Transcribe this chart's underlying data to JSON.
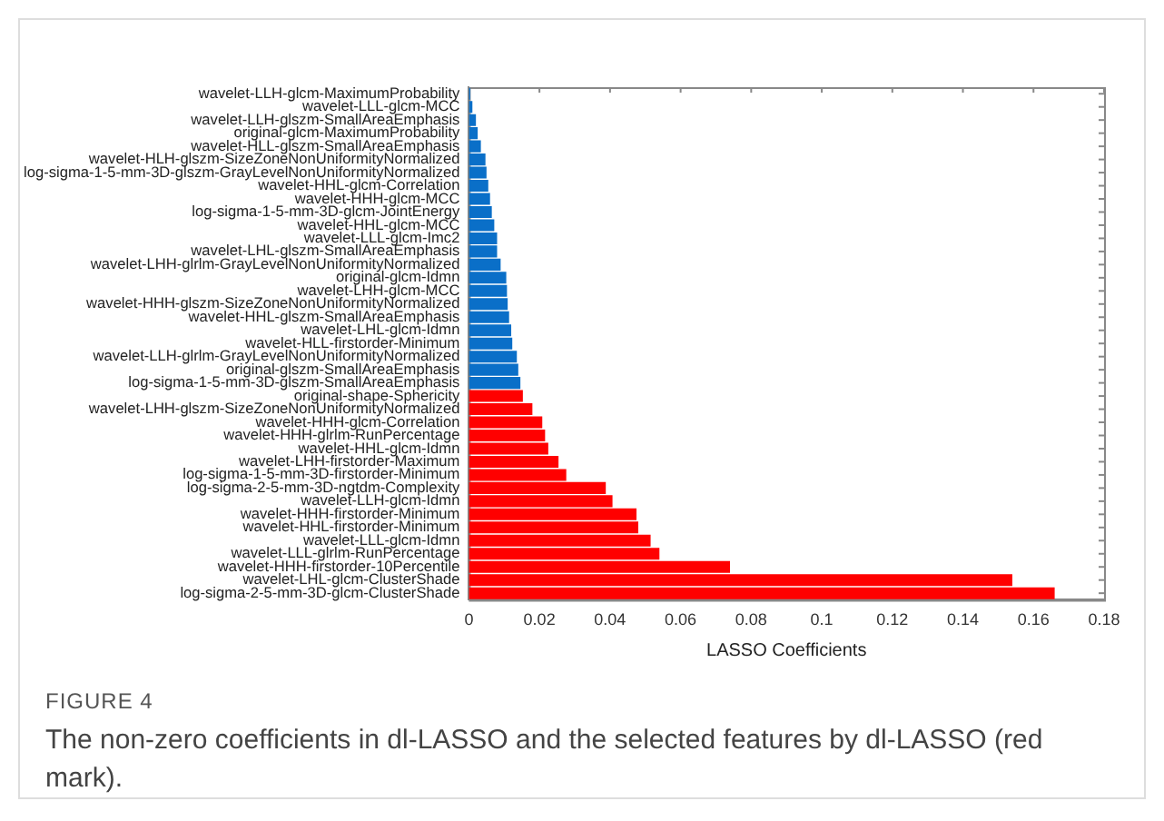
{
  "chart_data": {
    "type": "bar",
    "orientation": "horizontal",
    "xlabel": "LASSO Coefficients",
    "categories": [
      "wavelet-LLH-glcm-MaximumProbability",
      "wavelet-LLL-glcm-MCC",
      "wavelet-LLH-glszm-SmallAreaEmphasis",
      "original-glcm-MaximumProbability",
      "wavelet-HLL-glszm-SmallAreaEmphasis",
      "wavelet-HLH-glszm-SizeZoneNonUniformityNormalized",
      "log-sigma-1-5-mm-3D-glszm-GrayLevelNonUniformityNormalized",
      "wavelet-HHL-glcm-Correlation",
      "wavelet-HHH-glcm-MCC",
      "log-sigma-1-5-mm-3D-glcm-JointEnergy",
      "wavelet-HHL-glcm-MCC",
      "wavelet-LLL-glcm-Imc2",
      "wavelet-LHL-glszm-SmallAreaEmphasis",
      "wavelet-LHH-glrlm-GrayLevelNonUniformityNormalized",
      "original-glcm-Idmn",
      "wavelet-LHH-glcm-MCC",
      "wavelet-HHH-glszm-SizeZoneNonUniformityNormalized",
      "wavelet-HHL-glszm-SmallAreaEmphasis",
      "wavelet-LHL-glcm-Idmn",
      "wavelet-HLL-firstorder-Minimum",
      "wavelet-LLH-glrlm-GrayLevelNonUniformityNormalized",
      "original-glszm-SmallAreaEmphasis",
      "log-sigma-1-5-mm-3D-glszm-SmallAreaEmphasis",
      "original-shape-Sphericity",
      "wavelet-LHH-glszm-SizeZoneNonUniformityNormalized",
      "wavelet-HHH-glcm-Correlation",
      "wavelet-HHH-glrlm-RunPercentage",
      "wavelet-HHL-glcm-Idmn",
      "wavelet-LHH-firstorder-Maximum",
      "log-sigma-1-5-mm-3D-firstorder-Minimum",
      "log-sigma-2-5-mm-3D-ngtdm-Complexity",
      "wavelet-LLH-glcm-Idmn",
      "wavelet-HHH-firstorder-Minimum",
      "wavelet-HHL-firstorder-Minimum",
      "wavelet-LLL-glcm-Idmn",
      "wavelet-LLL-glrlm-RunPercentage",
      "wavelet-HHH-firstorder-10Percentile",
      "wavelet-LHL-glcm-ClusterShade",
      "log-sigma-2-5-mm-3D-glcm-ClusterShade"
    ],
    "values": [
      0.0004,
      0.001,
      0.002,
      0.0025,
      0.0034,
      0.0047,
      0.005,
      0.0055,
      0.006,
      0.0065,
      0.0072,
      0.008,
      0.008,
      0.009,
      0.0106,
      0.0108,
      0.011,
      0.0114,
      0.012,
      0.0123,
      0.0136,
      0.014,
      0.0146,
      0.0153,
      0.018,
      0.0208,
      0.0216,
      0.0225,
      0.0254,
      0.0276,
      0.0388,
      0.0407,
      0.0475,
      0.048,
      0.0515,
      0.054,
      0.074,
      0.154,
      0.166
    ],
    "colors": [
      "#0a6fc8",
      "#0a6fc8",
      "#0a6fc8",
      "#0a6fc8",
      "#0a6fc8",
      "#0a6fc8",
      "#0a6fc8",
      "#0a6fc8",
      "#0a6fc8",
      "#0a6fc8",
      "#0a6fc8",
      "#0a6fc8",
      "#0a6fc8",
      "#0a6fc8",
      "#0a6fc8",
      "#0a6fc8",
      "#0a6fc8",
      "#0a6fc8",
      "#0a6fc8",
      "#0a6fc8",
      "#0a6fc8",
      "#0a6fc8",
      "#0a6fc8",
      "#ff0000",
      "#ff0000",
      "#ff0000",
      "#ff0000",
      "#ff0000",
      "#ff0000",
      "#ff0000",
      "#ff0000",
      "#ff0000",
      "#ff0000",
      "#ff0000",
      "#ff0000",
      "#ff0000",
      "#ff0000",
      "#ff0000",
      "#ff0000"
    ],
    "xlim": [
      0,
      0.18
    ],
    "xticks": [
      0,
      0.02,
      0.04,
      0.06,
      0.08,
      0.1,
      0.12,
      0.14,
      0.16,
      0.18
    ],
    "grid": false,
    "legend": false,
    "annotations": [
      "FIGURE 4",
      "The non-zero coefficients in dl-LASSO and the selected features by dl-LASSO (red mark)."
    ]
  }
}
